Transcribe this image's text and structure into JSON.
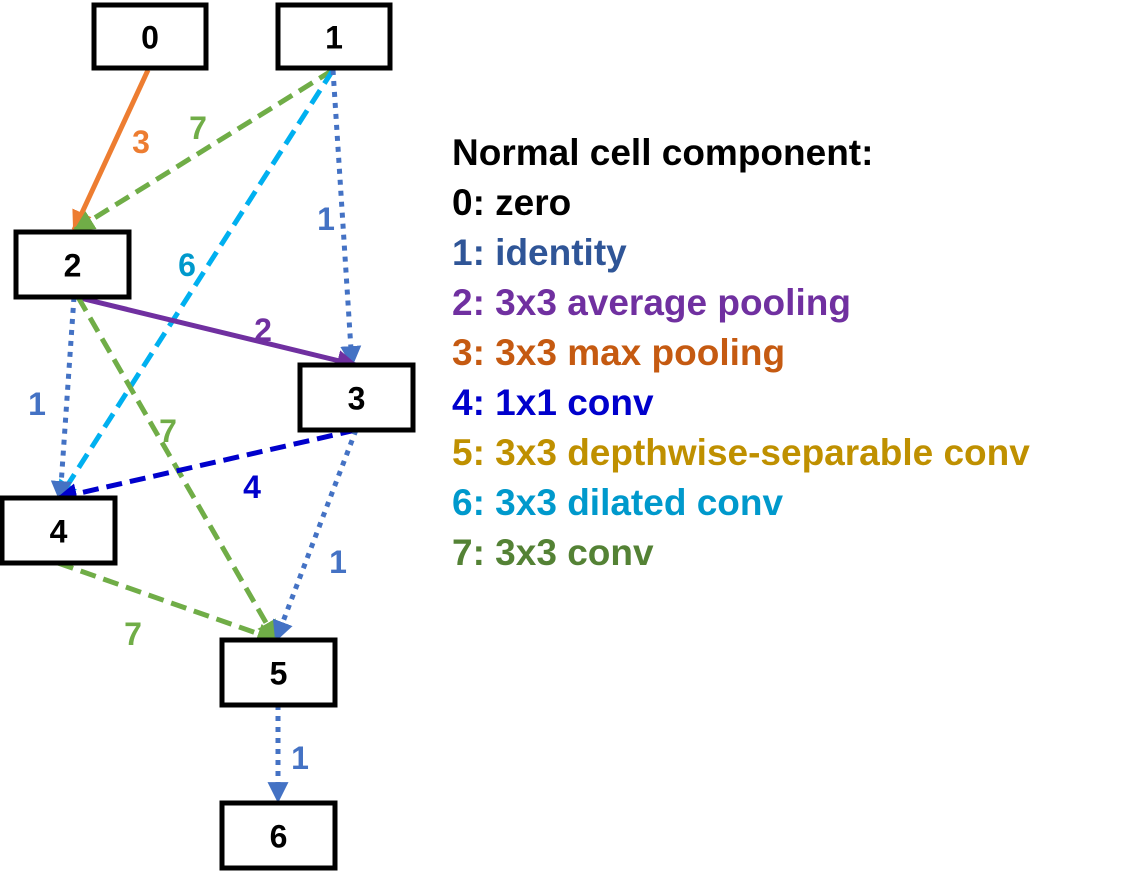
{
  "legend": {
    "title": "Normal cell component:",
    "items": [
      {
        "text": "0: zero",
        "color": "#000000"
      },
      {
        "text": "1: identity",
        "color": "#2F5597"
      },
      {
        "text": "2: 3x3 average pooling",
        "color": "#7030A0"
      },
      {
        "text": "3: 3x3 max pooling",
        "color": "#C55A11"
      },
      {
        "text": "4: 1x1 conv",
        "color": "#0000CC"
      },
      {
        "text": "5: 3x3 depthwise-separable conv",
        "color": "#BF9000"
      },
      {
        "text": "6: 3x3 dilated conv",
        "color": "#0099CC"
      },
      {
        "text": "7: 3x3 conv",
        "color": "#548235"
      }
    ]
  },
  "nodes": [
    {
      "id": "0",
      "label": "0"
    },
    {
      "id": "1",
      "label": "1"
    },
    {
      "id": "2",
      "label": "2"
    },
    {
      "id": "3",
      "label": "3"
    },
    {
      "id": "4",
      "label": "4"
    },
    {
      "id": "5",
      "label": "5"
    },
    {
      "id": "6",
      "label": "6"
    }
  ],
  "edges": [
    {
      "from": "0",
      "to": "2",
      "op": "3",
      "style": "solid",
      "color": "#ED7D31",
      "label_color": "#ED7D31"
    },
    {
      "from": "1",
      "to": "2",
      "op": "7",
      "style": "dashed",
      "color": "#70AD47",
      "label_color": "#70AD47"
    },
    {
      "from": "1",
      "to": "4",
      "op": "6",
      "style": "dashed",
      "color": "#00B0F0",
      "label_color": "#0099CC"
    },
    {
      "from": "1",
      "to": "3",
      "op": "1",
      "style": "dotted",
      "color": "#4472C4",
      "label_color": "#4472C4"
    },
    {
      "from": "2",
      "to": "3",
      "op": "2",
      "style": "solid",
      "color": "#7030A0",
      "label_color": "#7030A0"
    },
    {
      "from": "2",
      "to": "4",
      "op": "1",
      "style": "dotted",
      "color": "#4472C4",
      "label_color": "#4472C4"
    },
    {
      "from": "2",
      "to": "5",
      "op": "7",
      "style": "dashed",
      "color": "#70AD47",
      "label_color": "#70AD47"
    },
    {
      "from": "3",
      "to": "4",
      "op": "4",
      "style": "dashed",
      "color": "#0000CC",
      "label_color": "#0000CC"
    },
    {
      "from": "3",
      "to": "5",
      "op": "1",
      "style": "dotted",
      "color": "#4472C4",
      "label_color": "#4472C4"
    },
    {
      "from": "4",
      "to": "5",
      "op": "7",
      "style": "dashed",
      "color": "#70AD47",
      "label_color": "#70AD47"
    },
    {
      "from": "5",
      "to": "6",
      "op": "1",
      "style": "dotted",
      "color": "#4472C4",
      "label_color": "#4472C4"
    }
  ]
}
